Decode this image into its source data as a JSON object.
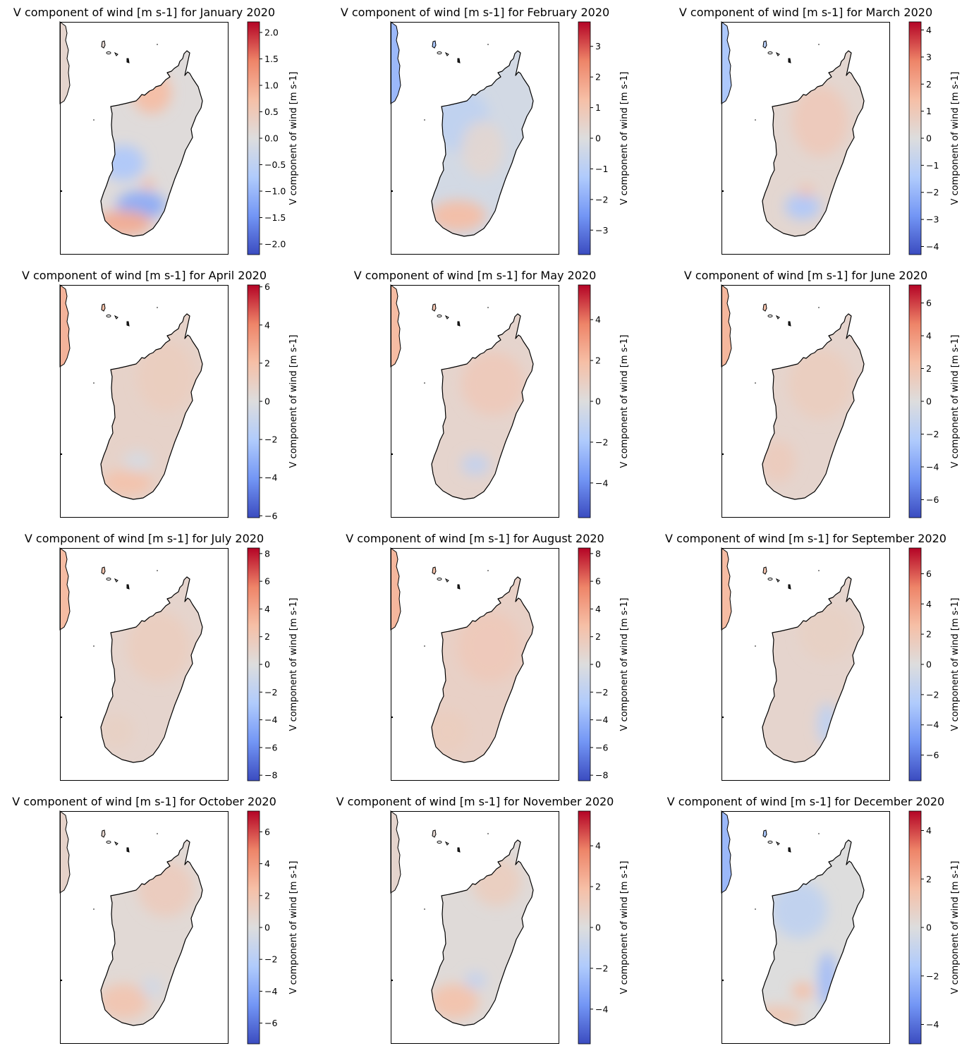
{
  "figure": {
    "colorbar_label": "V component of wind [m s-1]",
    "colormap": "coolwarm",
    "colormap_stops": [
      "#3b4cc0",
      "#7396f5",
      "#b0cbfc",
      "#dddddd",
      "#f6bfa6",
      "#ee8468",
      "#b40426"
    ]
  },
  "panels": [
    {
      "title": "V component of wind [m s-1] for January 2020",
      "vmax": 2.2,
      "ticks": [
        2.0,
        1.5,
        1.0,
        0.5,
        0.0,
        -0.5,
        -1.0,
        -1.5,
        -2.0
      ],
      "tick_labels": [
        "2.0",
        "1.5",
        "1.0",
        "0.5",
        "0.0",
        "−0.5",
        "−1.0",
        "−1.5",
        "−2.0"
      ]
    },
    {
      "title": "V component of wind [m s-1] for February 2020",
      "vmax": 3.8,
      "ticks": [
        3,
        2,
        1,
        0,
        -1,
        -2,
        -3
      ],
      "tick_labels": [
        "3",
        "2",
        "1",
        "0",
        "−1",
        "−2",
        "−3"
      ]
    },
    {
      "title": "V component of wind [m s-1] for March 2020",
      "vmax": 4.3,
      "ticks": [
        4,
        3,
        2,
        1,
        0,
        -1,
        -2,
        -3,
        -4
      ],
      "tick_labels": [
        "4",
        "3",
        "2",
        "1",
        "0",
        "−1",
        "−2",
        "−3",
        "−4"
      ]
    },
    {
      "title": "V component of wind [m s-1] for April 2020",
      "vmax": 6.1,
      "ticks": [
        6,
        4,
        2,
        0,
        -2,
        -4,
        -6
      ],
      "tick_labels": [
        "6",
        "4",
        "2",
        "0",
        "−2",
        "−4",
        "−6"
      ]
    },
    {
      "title": "V component of wind [m s-1] for May 2020",
      "vmax": 5.7,
      "ticks": [
        4,
        2,
        0,
        -2,
        -4
      ],
      "tick_labels": [
        "4",
        "2",
        "0",
        "−2",
        "−4"
      ]
    },
    {
      "title": "V component of wind [m s-1] for June 2020",
      "vmax": 7.1,
      "ticks": [
        6,
        4,
        2,
        0,
        -2,
        -4,
        -6
      ],
      "tick_labels": [
        "6",
        "4",
        "2",
        "0",
        "−2",
        "−4",
        "−6"
      ]
    },
    {
      "title": "V component of wind [m s-1] for July 2020",
      "vmax": 8.4,
      "ticks": [
        8,
        6,
        4,
        2,
        0,
        -2,
        -4,
        -6,
        -8
      ],
      "tick_labels": [
        "8",
        "6",
        "4",
        "2",
        "0",
        "−2",
        "−4",
        "−6",
        "−8"
      ]
    },
    {
      "title": "V component of wind [m s-1] for August 2020",
      "vmax": 8.4,
      "ticks": [
        8,
        6,
        4,
        2,
        0,
        -2,
        -4,
        -6,
        -8
      ],
      "tick_labels": [
        "8",
        "6",
        "4",
        "2",
        "0",
        "−2",
        "−4",
        "−6",
        "−8"
      ]
    },
    {
      "title": "V component of wind [m s-1] for September 2020",
      "vmax": 7.7,
      "ticks": [
        6,
        4,
        2,
        0,
        -2,
        -4,
        -6
      ],
      "tick_labels": [
        "6",
        "4",
        "2",
        "0",
        "−2",
        "−4",
        "−6"
      ]
    },
    {
      "title": "V component of wind [m s-1] for October 2020",
      "vmax": 7.3,
      "ticks": [
        6,
        4,
        2,
        0,
        -2,
        -4,
        -6
      ],
      "tick_labels": [
        "6",
        "4",
        "2",
        "0",
        "−2",
        "−4",
        "−6"
      ]
    },
    {
      "title": "V component of wind [m s-1] for November 2020",
      "vmax": 5.7,
      "ticks": [
        4,
        2,
        0,
        -2,
        -4
      ],
      "tick_labels": [
        "4",
        "2",
        "0",
        "−2",
        "−4"
      ]
    },
    {
      "title": "V component of wind [m s-1] for December 2020",
      "vmax": 4.8,
      "ticks": [
        4,
        2,
        0,
        -2,
        -4
      ],
      "tick_labels": [
        "4",
        "2",
        "0",
        "−2",
        "−4"
      ]
    }
  ]
}
